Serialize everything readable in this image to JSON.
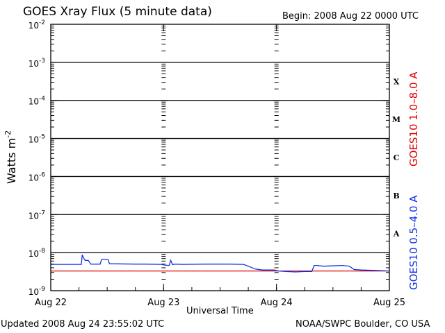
{
  "chart_data": {
    "type": "line",
    "title": "GOES Xray Flux (5 minute data)",
    "begin_label": "Begin:  2008 Aug 22 0000 UTC",
    "ylabel": "Watts m",
    "ylabel_exponent": "-2",
    "xlabel": "Universal Time",
    "yscale": "log",
    "ylim": [
      1e-09,
      0.01
    ],
    "xlim": [
      0,
      72
    ],
    "x_unit": "hours since 2008 Aug 22 0000 UTC",
    "y_ticks": [
      {
        "base": "10",
        "exp": "-9",
        "value": 1e-09
      },
      {
        "base": "10",
        "exp": "-8",
        "value": 1e-08
      },
      {
        "base": "10",
        "exp": "-7",
        "value": 1e-07
      },
      {
        "base": "10",
        "exp": "-6",
        "value": 1e-06
      },
      {
        "base": "10",
        "exp": "-5",
        "value": 1e-05
      },
      {
        "base": "10",
        "exp": "-4",
        "value": 0.0001
      },
      {
        "base": "10",
        "exp": "-3",
        "value": 0.001
      },
      {
        "base": "10",
        "exp": "-2",
        "value": 0.01
      }
    ],
    "x_ticks": [
      {
        "label": "Aug 22",
        "value": 0
      },
      {
        "label": "Aug 23",
        "value": 24
      },
      {
        "label": "Aug 24",
        "value": 48
      },
      {
        "label": "Aug 25",
        "value": 72
      }
    ],
    "class_labels": [
      {
        "label": "X",
        "value": 0.000316
      },
      {
        "label": "M",
        "value": 3.16e-05
      },
      {
        "label": "C",
        "value": 3.16e-06
      },
      {
        "label": "B",
        "value": 3.16e-07
      },
      {
        "label": "A",
        "value": 3.16e-08
      }
    ],
    "series": [
      {
        "name": "GOES10 1.0–8.0 A",
        "color": "#e00000",
        "x": [
          0,
          72
        ],
        "y": [
          3.3e-09,
          3.3e-09
        ]
      },
      {
        "name": "GOES10 0.5–4.0 A",
        "color": "#1030e0",
        "x": [
          0,
          6.5,
          6.7,
          7.0,
          7.3,
          8.0,
          8.5,
          9.5,
          10.5,
          10.8,
          11.5,
          12.2,
          12.5,
          18,
          20,
          23.5,
          24.2,
          25.2,
          25.5,
          25.9,
          26.3,
          28,
          33,
          35,
          38,
          41,
          42,
          43.5,
          45,
          47.5,
          48.5,
          50,
          52,
          54,
          55.5,
          56,
          56.5,
          58,
          60,
          62,
          63.5,
          64.5,
          66,
          69,
          72
        ],
        "y": [
          4.9e-09,
          4.9e-09,
          8.8e-09,
          7.2e-09,
          6.3e-09,
          6.2e-09,
          5e-09,
          5e-09,
          5e-09,
          6.6e-09,
          6.6e-09,
          6.5e-09,
          5.1e-09,
          5e-09,
          5e-09,
          4.9e-09,
          4.7e-09,
          4.6e-09,
          6.3e-09,
          4.8e-09,
          5e-09,
          4.9e-09,
          5e-09,
          5e-09,
          5e-09,
          4.9e-09,
          4.4e-09,
          3.7e-09,
          3.5e-09,
          3.5e-09,
          3.3e-09,
          3.2e-09,
          3.1e-09,
          3.2e-09,
          3.2e-09,
          4.6e-09,
          4.6e-09,
          4.4e-09,
          4.5e-09,
          4.6e-09,
          4.4e-09,
          3.6e-09,
          3.5e-09,
          3.4e-09,
          3.3e-09
        ]
      }
    ],
    "grid": true
  },
  "footer": {
    "updated": "Updated 2008 Aug 24 23:55:02 UTC",
    "credit": "NOAA/SWPC Boulder, CO USA"
  }
}
